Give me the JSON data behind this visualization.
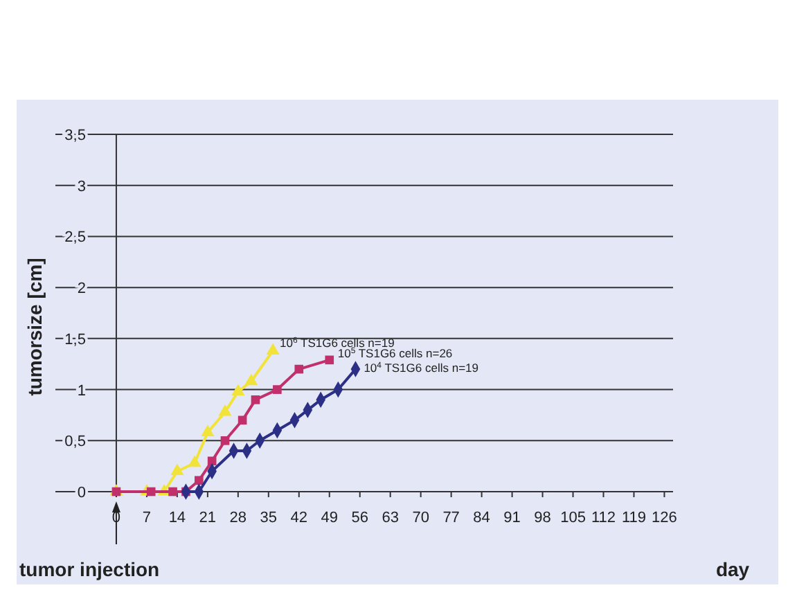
{
  "chart_data": {
    "type": "line",
    "xlabel": "day",
    "ylabel": "tumorsize [cm]",
    "xlim": [
      -14,
      128
    ],
    "ylim": [
      0,
      3.5
    ],
    "xticks": [
      0,
      7,
      14,
      21,
      28,
      35,
      42,
      49,
      56,
      63,
      70,
      77,
      84,
      91,
      98,
      105,
      112,
      119,
      126
    ],
    "yticks": [
      0,
      {
        "value": 0.5,
        "label": "0,5"
      },
      1,
      {
        "value": 1.5,
        "label": "1,5"
      },
      2,
      {
        "value": 2.5,
        "label": "2,5"
      },
      3,
      {
        "value": 3.5,
        "label": "3,5"
      }
    ],
    "grid": "y",
    "annotations": [
      {
        "text": "tumor injection",
        "x": 0,
        "y": 0
      }
    ],
    "series": [
      {
        "name": "10$^{6}$ TS1G6 cells n=19",
        "color": "#f2e33a",
        "marker": "triangle",
        "x": [
          0,
          7,
          11,
          14,
          18,
          21,
          25,
          28,
          31,
          36
        ],
        "values": [
          0,
          0,
          0,
          0.2,
          0.28,
          0.58,
          0.78,
          0.98,
          1.08,
          1.38
        ]
      },
      {
        "name": "10$^{5}$ TS1G6 cells n=26",
        "color": "#c2306c",
        "marker": "square",
        "x": [
          0,
          8,
          13,
          16,
          19,
          22,
          25,
          29,
          32,
          37,
          42,
          49
        ],
        "values": [
          0,
          0,
          0,
          0,
          0.11,
          0.3,
          0.5,
          0.7,
          0.9,
          1.0,
          1.2,
          1.29
        ]
      },
      {
        "name": "10$^{4}$ TS1G6 cells n=19",
        "color": "#2b2f85",
        "marker": "diamond",
        "x": [
          16,
          19,
          22,
          27,
          30,
          33,
          37,
          41,
          44,
          47,
          51,
          55
        ],
        "values": [
          0,
          0,
          0.2,
          0.4,
          0.4,
          0.5,
          0.6,
          0.7,
          0.8,
          0.9,
          1.0,
          1.2
        ]
      }
    ]
  }
}
